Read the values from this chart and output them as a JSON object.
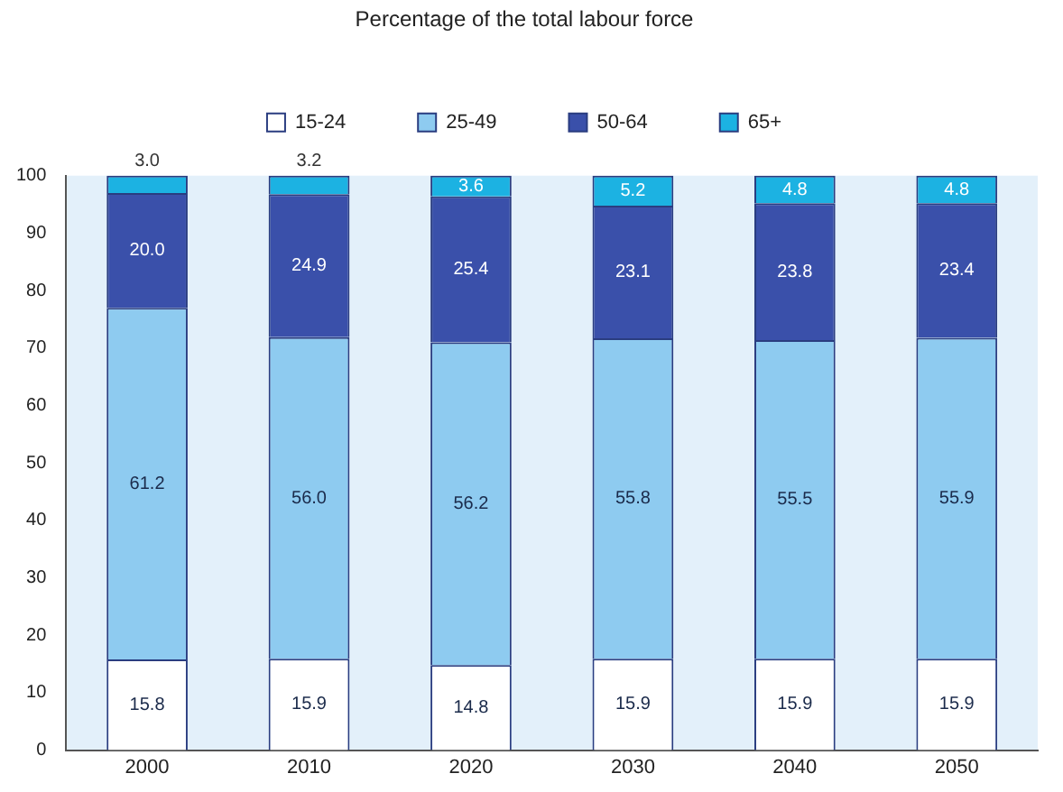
{
  "chart_data": {
    "type": "bar",
    "title": "Percentage of the total labour force",
    "categories": [
      "2000",
      "2010",
      "2020",
      "2030",
      "2040",
      "2050"
    ],
    "stacked": true,
    "series": [
      {
        "name": "15-24",
        "color": "#ffffff",
        "values": [
          15.8,
          15.9,
          14.8,
          15.9,
          15.9,
          15.9
        ],
        "value_labels": [
          "15.8",
          "15.9",
          "14.8",
          "15.9",
          "15.9",
          "15.9"
        ]
      },
      {
        "name": "25-49",
        "color": "#8ecbf0",
        "values": [
          61.2,
          56.0,
          56.2,
          55.8,
          55.5,
          55.9
        ],
        "value_labels": [
          "61.2",
          "56.0",
          "56.2",
          "55.8",
          "55.5",
          "55.9"
        ]
      },
      {
        "name": "50-64",
        "color": "#3a50aa",
        "values": [
          20.0,
          24.9,
          25.4,
          23.1,
          23.8,
          23.4
        ],
        "value_labels": [
          "20.0",
          "24.9",
          "25.4",
          "23.1",
          "23.8",
          "23.4"
        ]
      },
      {
        "name": "65+",
        "color": "#1cb2e2",
        "values": [
          3.0,
          3.2,
          3.6,
          5.2,
          4.8,
          4.8
        ],
        "value_labels": [
          "3.0",
          "3.2",
          "3.6",
          "5.2",
          "4.8",
          "4.8"
        ]
      }
    ],
    "ylim": [
      0,
      100
    ],
    "yticks": [
      0,
      10,
      20,
      30,
      40,
      50,
      60,
      70,
      80,
      90,
      100
    ],
    "grid": false,
    "legend": "top"
  }
}
